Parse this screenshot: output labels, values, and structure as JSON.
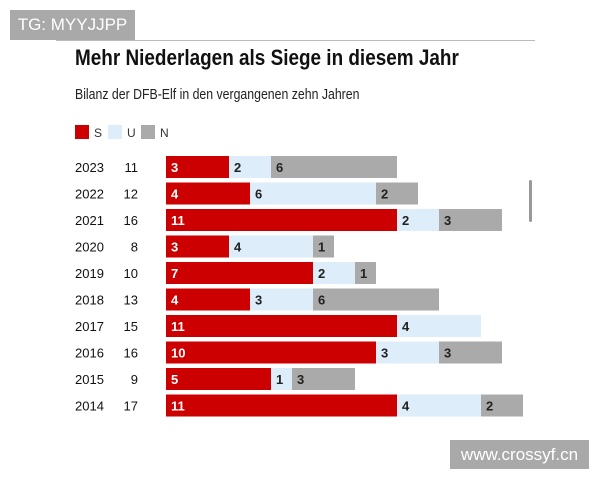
{
  "watermarks": {
    "top_left": "TG: MYYJJPP",
    "bottom_right": "www.crossyf.cn"
  },
  "chart_data": {
    "type": "bar",
    "stacked": true,
    "orientation": "horizontal",
    "title": "Mehr Niederlagen als Siege in diesem Jahr",
    "subtitle": "Bilanz der DFB-Elf in den vergangenen zehn Jahren",
    "legend": {
      "placement": "top-left",
      "entries": [
        "S",
        "U",
        "N"
      ]
    },
    "categories": [
      "2023",
      "2022",
      "2021",
      "2020",
      "2019",
      "2018",
      "2017",
      "2016",
      "2015",
      "2014"
    ],
    "totals": [
      11,
      12,
      16,
      8,
      10,
      13,
      15,
      16,
      9,
      17
    ],
    "series": [
      {
        "name": "S",
        "color": "#cc0000",
        "values": [
          3,
          4,
          11,
          3,
          7,
          4,
          11,
          10,
          5,
          11
        ]
      },
      {
        "name": "U",
        "color": "#ddeefa",
        "values": [
          2,
          6,
          2,
          4,
          2,
          3,
          4,
          3,
          1,
          4
        ]
      },
      {
        "name": "N",
        "color": "#aaaaaa",
        "values": [
          6,
          2,
          3,
          1,
          1,
          6,
          0,
          3,
          3,
          2
        ]
      }
    ],
    "grid": false
  }
}
